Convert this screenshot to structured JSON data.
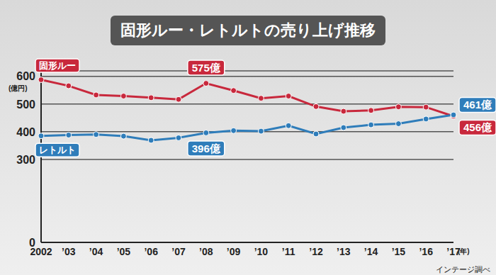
{
  "chart_data": {
    "type": "line",
    "title": "固形ルー・レトルトの売り上げ推移",
    "x_label": "(年)",
    "y_label": "(億円)",
    "source": "インテージ調べ",
    "categories": [
      "2002",
      "’03",
      "’04",
      "’05",
      "’06",
      "’07",
      "’08",
      "’09",
      "’10",
      "’11",
      "’12",
      "’13",
      "’14",
      "’15",
      "’16",
      "’17"
    ],
    "series": [
      {
        "name": "固形ルー",
        "color": "#c8283c",
        "values": [
          588,
          566,
          533,
          529,
          523,
          517,
          575,
          549,
          521,
          529,
          491,
          474,
          477,
          490,
          489,
          456
        ],
        "value_labels": [
          null,
          null,
          null,
          null,
          null,
          null,
          "575億",
          null,
          null,
          null,
          null,
          null,
          null,
          null,
          null,
          "456億"
        ]
      },
      {
        "name": "レトルト",
        "color": "#2f7dba",
        "values": [
          385,
          388,
          390,
          384,
          369,
          378,
          396,
          404,
          402,
          422,
          392,
          415,
          425,
          429,
          446,
          461
        ],
        "value_labels": [
          null,
          null,
          null,
          null,
          null,
          null,
          "396億",
          null,
          null,
          null,
          null,
          null,
          null,
          null,
          null,
          "461億"
        ]
      }
    ],
    "ylim": [
      0,
      620
    ],
    "yticks": [
      0,
      300,
      400,
      500,
      600
    ],
    "grid": true,
    "marker": "circle"
  }
}
